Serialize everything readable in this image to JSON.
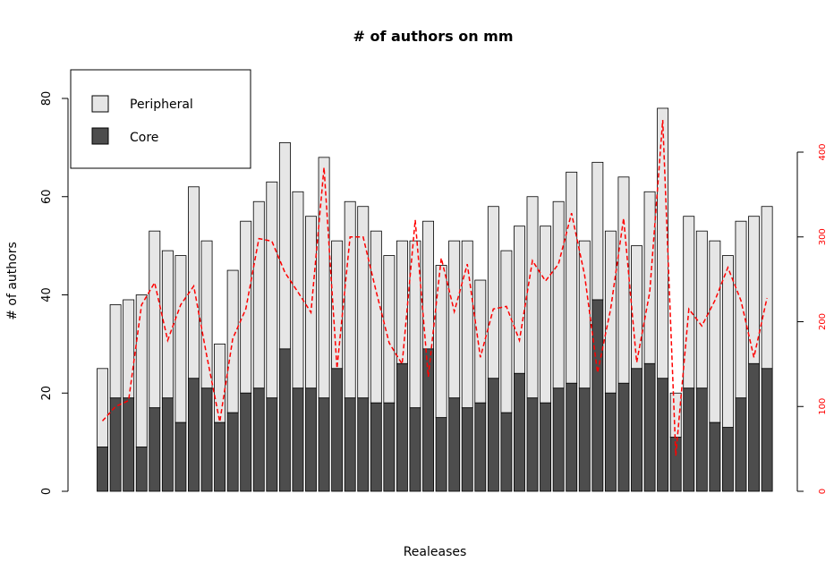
{
  "chart_data": {
    "type": "bar",
    "title": "# of authors on mm",
    "xlabel": "Realeases",
    "ylabel": "# of authors",
    "ylim": [
      0,
      80
    ],
    "y_ticks": [
      0,
      20,
      40,
      60,
      80
    ],
    "y2_ticks": [
      0,
      100,
      200,
      300,
      400
    ],
    "stacked": true,
    "legend": {
      "placement": "top-left",
      "entries": [
        "Peripheral",
        "Core"
      ]
    },
    "series": [
      {
        "name": "Core",
        "color": "#4d4d4d",
        "values": [
          9,
          19,
          19,
          9,
          17,
          19,
          14,
          23,
          21,
          14,
          16,
          20,
          21,
          19,
          29,
          21,
          21,
          19,
          25,
          19,
          19,
          18,
          18,
          26,
          17,
          29,
          15,
          19,
          17,
          18,
          23,
          16,
          24,
          19,
          18,
          21,
          22,
          21,
          39,
          20,
          22,
          25,
          26,
          23,
          11,
          21,
          21,
          14,
          13,
          19,
          26,
          25
        ]
      },
      {
        "name": "Peripheral",
        "color": "#e6e6e6",
        "values": [
          16,
          19,
          20,
          31,
          36,
          30,
          34,
          39,
          30,
          16,
          29,
          35,
          38,
          44,
          42,
          40,
          35,
          49,
          26,
          40,
          39,
          35,
          30,
          25,
          34,
          26,
          31,
          32,
          34,
          25,
          35,
          33,
          30,
          41,
          36,
          38,
          43,
          30,
          28,
          33,
          42,
          25,
          35,
          55,
          9,
          35,
          32,
          37,
          35,
          36,
          30,
          33
        ]
      }
    ],
    "line_series": {
      "color": "#ff0000",
      "axis": "right",
      "values": [
        83,
        100,
        107,
        220,
        246,
        178,
        220,
        242,
        160,
        82,
        180,
        215,
        298,
        295,
        258,
        235,
        211,
        382,
        145,
        300,
        300,
        236,
        175,
        150,
        320,
        135,
        275,
        212,
        268,
        158,
        215,
        218,
        178,
        272,
        248,
        268,
        328,
        255,
        140,
        215,
        322,
        152,
        235,
        438,
        42,
        215,
        195,
        225,
        264,
        225,
        158,
        228
      ]
    }
  }
}
